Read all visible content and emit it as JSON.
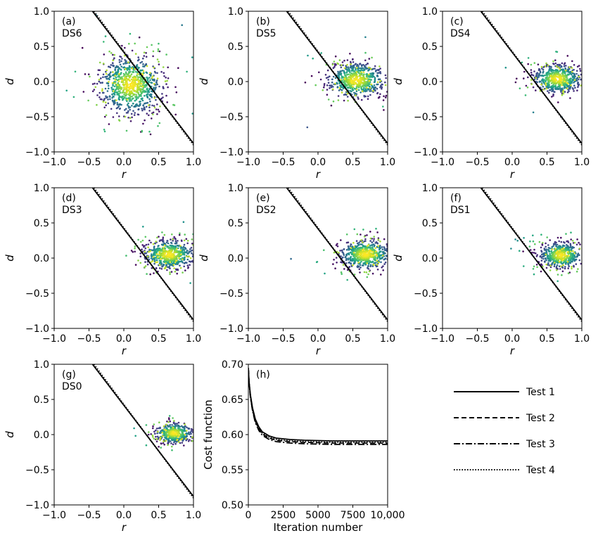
{
  "chart_data": [
    {
      "type": "scatter",
      "panel": "(a)",
      "dataset": "DS6",
      "xlabel": "r",
      "ylabel": "d",
      "xlim": [
        -1.0,
        1.0
      ],
      "ylim": [
        -1.0,
        1.0
      ],
      "xticks": [
        "−1.0",
        "−0.5",
        "0.0",
        "0.5",
        "1.0"
      ],
      "yticks": [
        "−1.0",
        "−0.5",
        "0.0",
        "0.5",
        "1.0"
      ],
      "cloud": {
        "center_x": 0.1,
        "center_y": -0.05,
        "spread_x": 0.22,
        "spread_y": 0.2,
        "n_points": 900,
        "density_colormap": "viridis"
      },
      "lines": [
        {
          "name": "Test 1",
          "style": "solid",
          "x": [
            -0.45,
            1.0
          ],
          "y": [
            1.0,
            -0.88
          ]
        },
        {
          "name": "Test 4",
          "style": "dotted",
          "x": [
            -0.43,
            1.0
          ],
          "y": [
            1.0,
            -0.9
          ]
        }
      ]
    },
    {
      "type": "scatter",
      "panel": "(b)",
      "dataset": "DS5",
      "xlabel": "r",
      "ylabel": "d",
      "xlim": [
        -1.0,
        1.0
      ],
      "ylim": [
        -1.0,
        1.0
      ],
      "xticks": [
        "−1.0",
        "−0.5",
        "0.0",
        "0.5",
        "1.0"
      ],
      "yticks": [
        "−1.0",
        "−0.5",
        "0.0",
        "0.5",
        "1.0"
      ],
      "cloud": {
        "center_x": 0.55,
        "center_y": 0.02,
        "spread_x": 0.2,
        "spread_y": 0.12,
        "n_points": 700,
        "density_colormap": "viridis"
      },
      "lines": [
        {
          "name": "Test 1",
          "style": "solid",
          "x": [
            -0.45,
            1.0
          ],
          "y": [
            1.0,
            -0.88
          ]
        },
        {
          "name": "Test 4",
          "style": "dotted",
          "x": [
            -0.43,
            1.0
          ],
          "y": [
            1.0,
            -0.9
          ]
        }
      ]
    },
    {
      "type": "scatter",
      "panel": "(c)",
      "dataset": "DS4",
      "xlabel": "r",
      "ylabel": "d",
      "xlim": [
        -1.0,
        1.0
      ],
      "ylim": [
        -1.0,
        1.0
      ],
      "xticks": [
        "−1.0",
        "−0.5",
        "0.0",
        "0.5",
        "1.0"
      ],
      "yticks": [
        "−1.0",
        "−0.5",
        "0.0",
        "0.5",
        "1.0"
      ],
      "cloud": {
        "center_x": 0.65,
        "center_y": 0.04,
        "spread_x": 0.17,
        "spread_y": 0.1,
        "n_points": 600,
        "density_colormap": "viridis"
      },
      "lines": [
        {
          "name": "Test 1",
          "style": "solid",
          "x": [
            -0.45,
            1.0
          ],
          "y": [
            1.0,
            -0.88
          ]
        },
        {
          "name": "Test 4",
          "style": "dotted",
          "x": [
            -0.43,
            1.0
          ],
          "y": [
            1.0,
            -0.9
          ]
        }
      ]
    },
    {
      "type": "scatter",
      "panel": "(d)",
      "dataset": "DS3",
      "xlabel": "r",
      "ylabel": "d",
      "xlim": [
        -1.0,
        1.0
      ],
      "ylim": [
        -1.0,
        1.0
      ],
      "xticks": [
        "−1.0",
        "−0.5",
        "0.0",
        "0.5",
        "1.0"
      ],
      "yticks": [
        "−1.0",
        "−0.5",
        "0.0",
        "0.5",
        "1.0"
      ],
      "cloud": {
        "center_x": 0.65,
        "center_y": 0.05,
        "spread_x": 0.18,
        "spread_y": 0.1,
        "n_points": 650,
        "density_colormap": "viridis"
      },
      "lines": [
        {
          "name": "Test 1",
          "style": "solid",
          "x": [
            -0.45,
            1.0
          ],
          "y": [
            1.0,
            -0.88
          ]
        },
        {
          "name": "Test 4",
          "style": "dotted",
          "x": [
            -0.43,
            1.0
          ],
          "y": [
            1.0,
            -0.9
          ]
        }
      ]
    },
    {
      "type": "scatter",
      "panel": "(e)",
      "dataset": "DS2",
      "xlabel": "r",
      "ylabel": "d",
      "xlim": [
        -1.0,
        1.0
      ],
      "ylim": [
        -1.0,
        1.0
      ],
      "xticks": [
        "−1.0",
        "−0.5",
        "0.0",
        "0.5",
        "1.0"
      ],
      "yticks": [
        "−1.0",
        "−0.5",
        "0.0",
        "0.5",
        "1.0"
      ],
      "cloud": {
        "center_x": 0.68,
        "center_y": 0.05,
        "spread_x": 0.18,
        "spread_y": 0.1,
        "n_points": 650,
        "density_colormap": "viridis"
      },
      "lines": [
        {
          "name": "Test 1",
          "style": "solid",
          "x": [
            -0.45,
            1.0
          ],
          "y": [
            1.0,
            -0.88
          ]
        },
        {
          "name": "Test 4",
          "style": "dotted",
          "x": [
            -0.43,
            1.0
          ],
          "y": [
            1.0,
            -0.9
          ]
        }
      ]
    },
    {
      "type": "scatter",
      "panel": "(f)",
      "dataset": "DS1",
      "xlabel": "r",
      "ylabel": "d",
      "xlim": [
        -1.0,
        1.0
      ],
      "ylim": [
        -1.0,
        1.0
      ],
      "xticks": [
        "−1.0",
        "−0.5",
        "0.0",
        "0.5",
        "1.0"
      ],
      "yticks": [
        "−1.0",
        "−0.5",
        "0.0",
        "0.5",
        "1.0"
      ],
      "cloud": {
        "center_x": 0.7,
        "center_y": 0.04,
        "spread_x": 0.15,
        "spread_y": 0.09,
        "n_points": 550,
        "density_colormap": "viridis"
      },
      "lines": [
        {
          "name": "Test 1",
          "style": "solid",
          "x": [
            -0.45,
            1.0
          ],
          "y": [
            1.0,
            -0.88
          ]
        },
        {
          "name": "Test 4",
          "style": "dotted",
          "x": [
            -0.43,
            1.0
          ],
          "y": [
            1.0,
            -0.9
          ]
        }
      ]
    },
    {
      "type": "scatter",
      "panel": "(g)",
      "dataset": "DS0",
      "xlabel": "r",
      "ylabel": "d",
      "xlim": [
        -1.0,
        1.0
      ],
      "ylim": [
        -1.0,
        1.0
      ],
      "xticks": [
        "−1.0",
        "−0.5",
        "0.0",
        "0.5",
        "1.0"
      ],
      "yticks": [
        "−1.0",
        "−0.5",
        "0.0",
        "0.5",
        "1.0"
      ],
      "cloud": {
        "center_x": 0.72,
        "center_y": 0.02,
        "spread_x": 0.13,
        "spread_y": 0.07,
        "n_points": 450,
        "density_colormap": "viridis"
      },
      "lines": [
        {
          "name": "Test 1",
          "style": "solid",
          "x": [
            -0.45,
            1.0
          ],
          "y": [
            1.0,
            -0.88
          ]
        },
        {
          "name": "Test 4",
          "style": "dotted",
          "x": [
            -0.43,
            1.0
          ],
          "y": [
            1.0,
            -0.9
          ]
        }
      ]
    },
    {
      "type": "line",
      "panel": "(h)",
      "xlabel": "Iteration number",
      "ylabel": "Cost function",
      "xlim": [
        0,
        10000
      ],
      "ylim": [
        0.5,
        0.7
      ],
      "xticks": [
        "0",
        "2500",
        "5000",
        "7500",
        "10,000"
      ],
      "yticks": [
        "0.50",
        "0.55",
        "0.60",
        "0.65",
        "0.70"
      ],
      "x": [
        0,
        50,
        150,
        300,
        500,
        750,
        1000,
        1500,
        2000,
        3000,
        4000,
        5000,
        6000,
        7000,
        8000,
        9000,
        10000
      ],
      "series": [
        {
          "name": "Test 1",
          "style": "solid",
          "values": [
            0.695,
            0.675,
            0.656,
            0.638,
            0.622,
            0.611,
            0.604,
            0.598,
            0.595,
            0.593,
            0.592,
            0.5915,
            0.591,
            0.591,
            0.591,
            0.591,
            0.591
          ]
        },
        {
          "name": "Test 2",
          "style": "dashed",
          "values": [
            0.695,
            0.674,
            0.654,
            0.635,
            0.619,
            0.608,
            0.601,
            0.595,
            0.592,
            0.59,
            0.589,
            0.5885,
            0.588,
            0.588,
            0.588,
            0.588,
            0.588
          ]
        },
        {
          "name": "Test 3",
          "style": "dashdot",
          "values": [
            0.695,
            0.673,
            0.653,
            0.634,
            0.617,
            0.606,
            0.599,
            0.593,
            0.59,
            0.588,
            0.587,
            0.5865,
            0.586,
            0.586,
            0.586,
            0.586,
            0.586
          ]
        },
        {
          "name": "Test 4",
          "style": "dotted",
          "values": [
            0.695,
            0.674,
            0.655,
            0.636,
            0.62,
            0.609,
            0.602,
            0.596,
            0.593,
            0.591,
            0.59,
            0.5895,
            0.589,
            0.589,
            0.589,
            0.589,
            0.589
          ]
        }
      ]
    }
  ],
  "legend": {
    "placement": "lower-right",
    "entries": [
      {
        "label": "Test 1",
        "style": "solid"
      },
      {
        "label": "Test 2",
        "style": "dashed"
      },
      {
        "label": "Test 3",
        "style": "dashdot"
      },
      {
        "label": "Test 4",
        "style": "dotted"
      }
    ]
  },
  "colors": {
    "lines": "#000000",
    "viridis": [
      "#440154",
      "#482878",
      "#3e4989",
      "#31688e",
      "#26828e",
      "#1f9e89",
      "#35b779",
      "#6ece58",
      "#b5de2b",
      "#fde725"
    ]
  }
}
